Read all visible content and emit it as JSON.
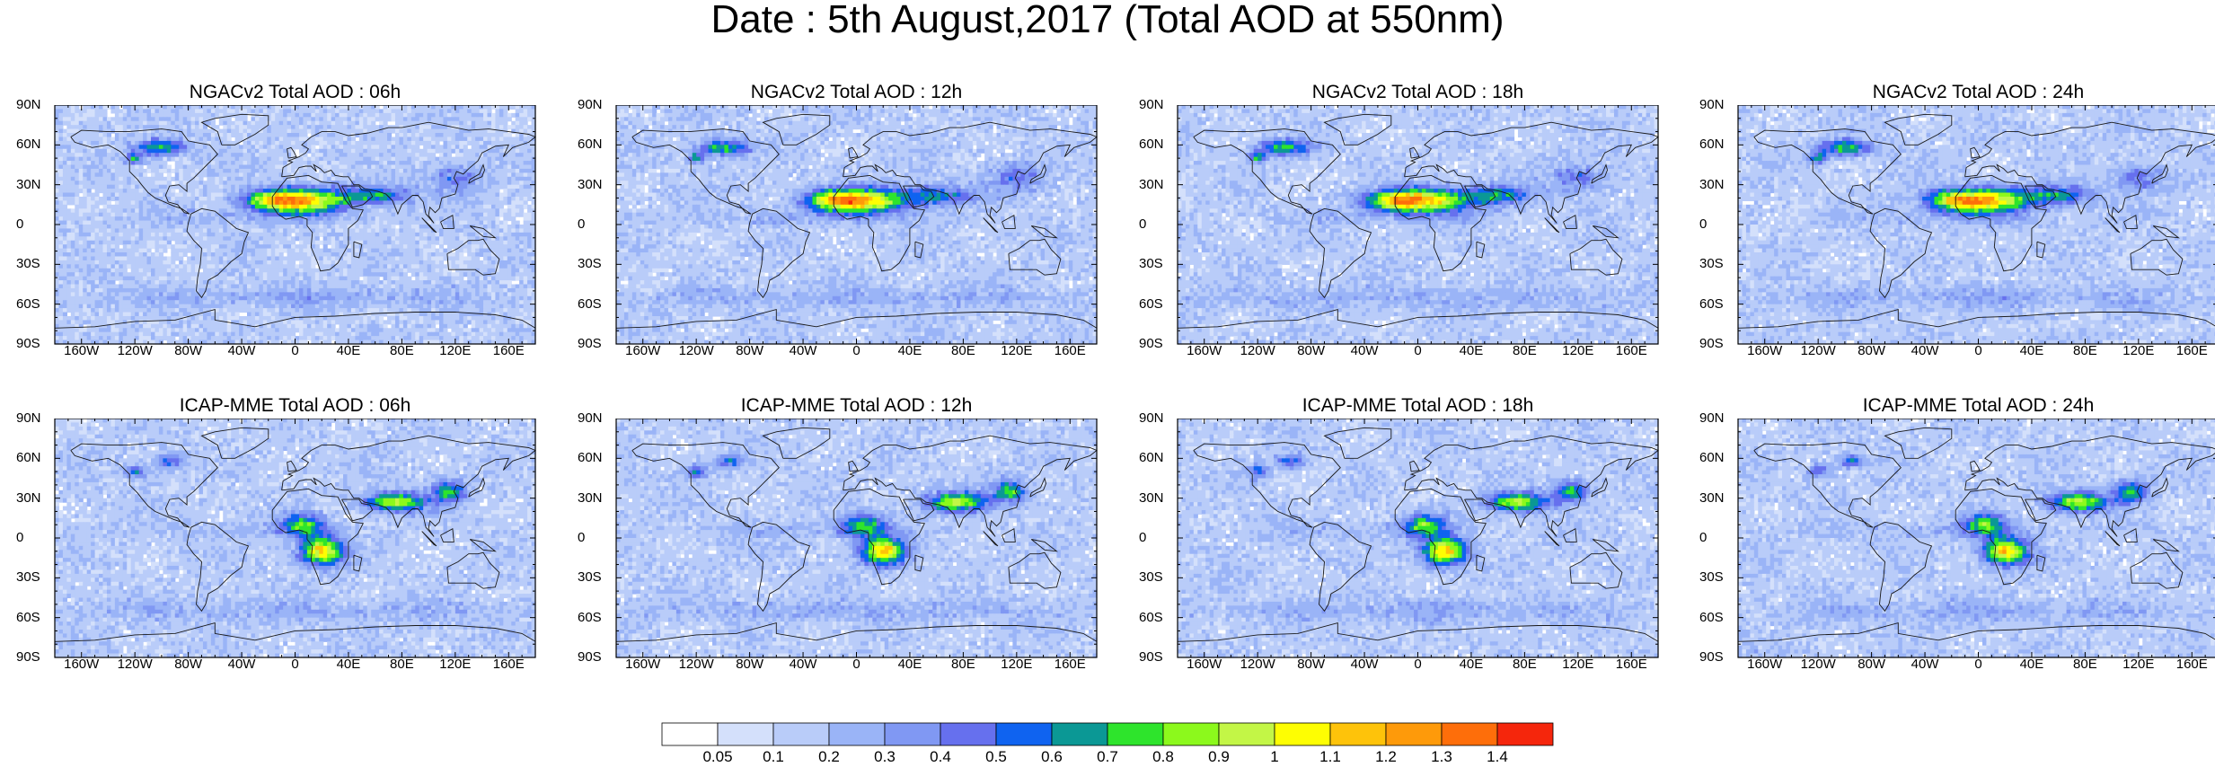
{
  "title": "Date : 5th August,2017 (Total AOD at 550nm)",
  "panels": [
    {
      "title": "NGACv2 Total AOD : 06h"
    },
    {
      "title": "NGACv2 Total AOD : 12h"
    },
    {
      "title": "NGACv2 Total AOD : 18h"
    },
    {
      "title": "NGACv2 Total AOD : 24h"
    },
    {
      "title": "ICAP-MME Total AOD : 06h"
    },
    {
      "title": "ICAP-MME Total AOD : 12h"
    },
    {
      "title": "ICAP-MME Total AOD : 18h"
    },
    {
      "title": "ICAP-MME Total AOD : 24h"
    }
  ],
  "y_ticks": [
    "90N",
    "60N",
    "30N",
    "0",
    "30S",
    "60S",
    "90S"
  ],
  "x_ticks": [
    "160W",
    "120W",
    "80W",
    "40W",
    "0",
    "40E",
    "80E",
    "120E",
    "160E"
  ],
  "colorbar": {
    "labels": [
      "0.05",
      "0.1",
      "0.2",
      "0.3",
      "0.4",
      "0.5",
      "0.6",
      "0.7",
      "0.8",
      "0.9",
      "1",
      "1.1",
      "1.2",
      "1.3",
      "1.4"
    ],
    "colors": [
      "#ffffff",
      "#d4e0fb",
      "#b9ccf9",
      "#9ab4f7",
      "#8098f3",
      "#6670ee",
      "#0f63f0",
      "#0b9895",
      "#2ee42c",
      "#8cf91c",
      "#c3f646",
      "#fefe02",
      "#fec30a",
      "#fe9a0a",
      "#fe6e0a",
      "#f5260c"
    ]
  }
}
